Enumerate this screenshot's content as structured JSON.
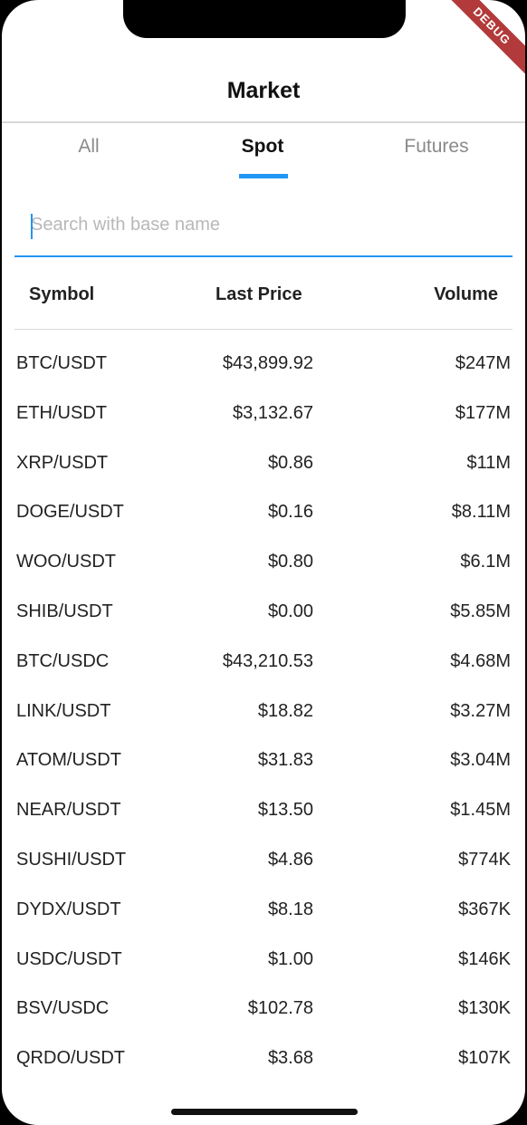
{
  "debug_banner": "DEBUG",
  "app_bar": {
    "title": "Market"
  },
  "tabs": [
    {
      "label": "All",
      "active": false
    },
    {
      "label": "Spot",
      "active": true
    },
    {
      "label": "Futures",
      "active": false
    }
  ],
  "search": {
    "placeholder": "Search with base name",
    "value": ""
  },
  "table": {
    "headers": {
      "symbol": "Symbol",
      "last_price": "Last Price",
      "volume": "Volume"
    },
    "rows": [
      {
        "symbol": "BTC/USDT",
        "last_price": "$43,899.92",
        "volume": "$247M"
      },
      {
        "symbol": "ETH/USDT",
        "last_price": "$3,132.67",
        "volume": "$177M"
      },
      {
        "symbol": "XRP/USDT",
        "last_price": "$0.86",
        "volume": "$11M"
      },
      {
        "symbol": "DOGE/USDT",
        "last_price": "$0.16",
        "volume": "$8.11M"
      },
      {
        "symbol": "WOO/USDT",
        "last_price": "$0.80",
        "volume": "$6.1M"
      },
      {
        "symbol": "SHIB/USDT",
        "last_price": "$0.00",
        "volume": "$5.85M"
      },
      {
        "symbol": "BTC/USDC",
        "last_price": "$43,210.53",
        "volume": "$4.68M"
      },
      {
        "symbol": "LINK/USDT",
        "last_price": "$18.82",
        "volume": "$3.27M"
      },
      {
        "symbol": "ATOM/USDT",
        "last_price": "$31.83",
        "volume": "$3.04M"
      },
      {
        "symbol": "NEAR/USDT",
        "last_price": "$13.50",
        "volume": "$1.45M"
      },
      {
        "symbol": "SUSHI/USDT",
        "last_price": "$4.86",
        "volume": "$774K"
      },
      {
        "symbol": "DYDX/USDT",
        "last_price": "$8.18",
        "volume": "$367K"
      },
      {
        "symbol": "USDC/USDT",
        "last_price": "$1.00",
        "volume": "$146K"
      },
      {
        "symbol": "BSV/USDC",
        "last_price": "$102.78",
        "volume": "$130K"
      },
      {
        "symbol": "QRDO/USDT",
        "last_price": "$3.68",
        "volume": "$107K"
      }
    ]
  },
  "colors": {
    "accent": "#2196f3",
    "debug_ribbon": "#b23a3a",
    "text_primary": "#222222",
    "text_inactive": "#8a8a8a",
    "divider": "#d9d9d9"
  }
}
